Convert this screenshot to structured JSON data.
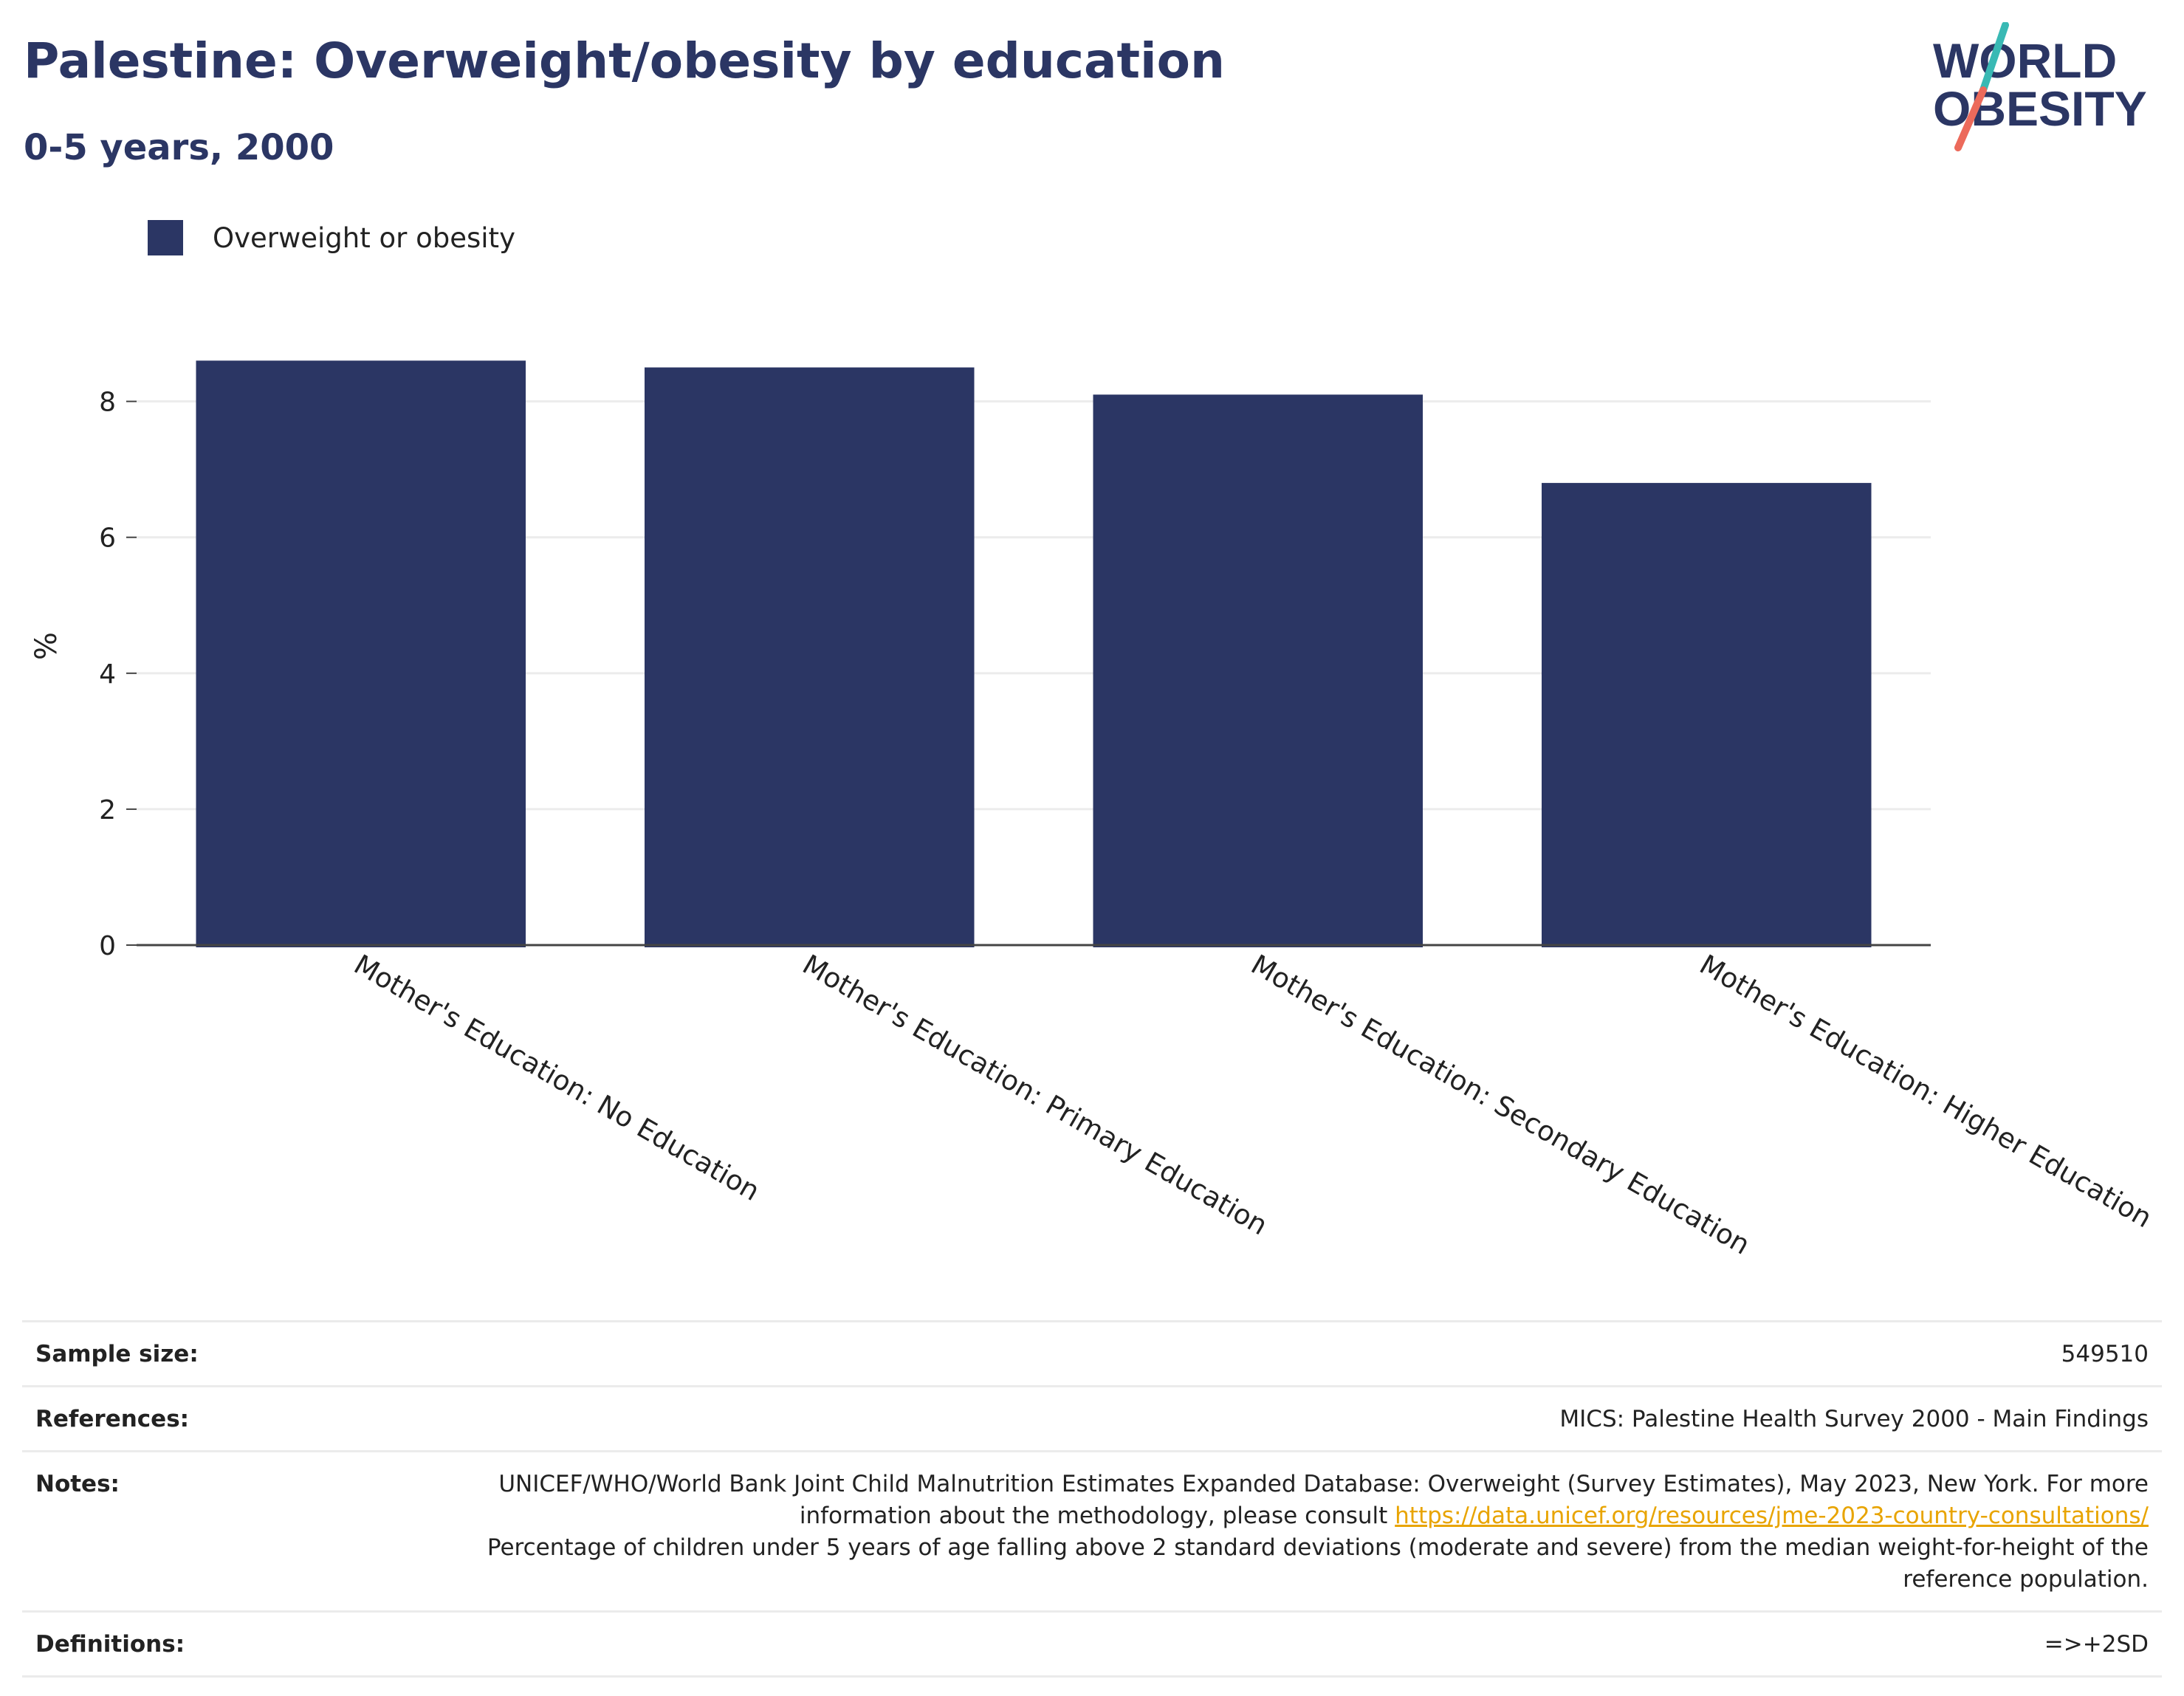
{
  "header": {
    "title": "Palestine: Overweight/obesity by education",
    "subtitle": "0-5 years, 2000"
  },
  "logo": {
    "line1": "WORLD",
    "line2": "OBESITY"
  },
  "colors": {
    "bar": "#2b3664",
    "title": "#2b3664",
    "logo_teal": "#39b9b4",
    "logo_coral": "#ec6a5b",
    "link": "#e8a400"
  },
  "chart_data": {
    "type": "bar",
    "categories": [
      "Mother's Education: No Education",
      "Mother's Education: Primary Education",
      "Mother's Education: Secondary Education",
      "Mother's Education: Higher Education"
    ],
    "series": [
      {
        "name": "Overweight or obesity",
        "values": [
          8.6,
          8.5,
          8.1,
          6.8
        ]
      }
    ],
    "ylabel": "%",
    "ylim": [
      0,
      8.8
    ],
    "yticks": [
      0,
      2,
      4,
      6,
      8
    ],
    "grid": true,
    "legend": "top-left"
  },
  "meta": {
    "sample_size_label": "Sample size:",
    "sample_size_value": "549510",
    "references_label": "References:",
    "references_value": "MICS: Palestine Health Survey 2000 - Main Findings",
    "notes_label": "Notes:",
    "notes_text_1": "UNICEF/WHO/World Bank Joint Child Malnutrition Estimates Expanded Database: Overweight (Survey Estimates), May 2023, New York. For more information about the methodology, please consult ",
    "notes_link": "https://data.unicef.org/resources/jme-2023-country-consultations/",
    "notes_text_2": "Percentage of children under 5 years of age falling above 2 standard deviations (moderate and severe) from the median weight-for-height of the reference population.",
    "definitions_label": "Definitions:",
    "definitions_value": "=>+2SD"
  }
}
